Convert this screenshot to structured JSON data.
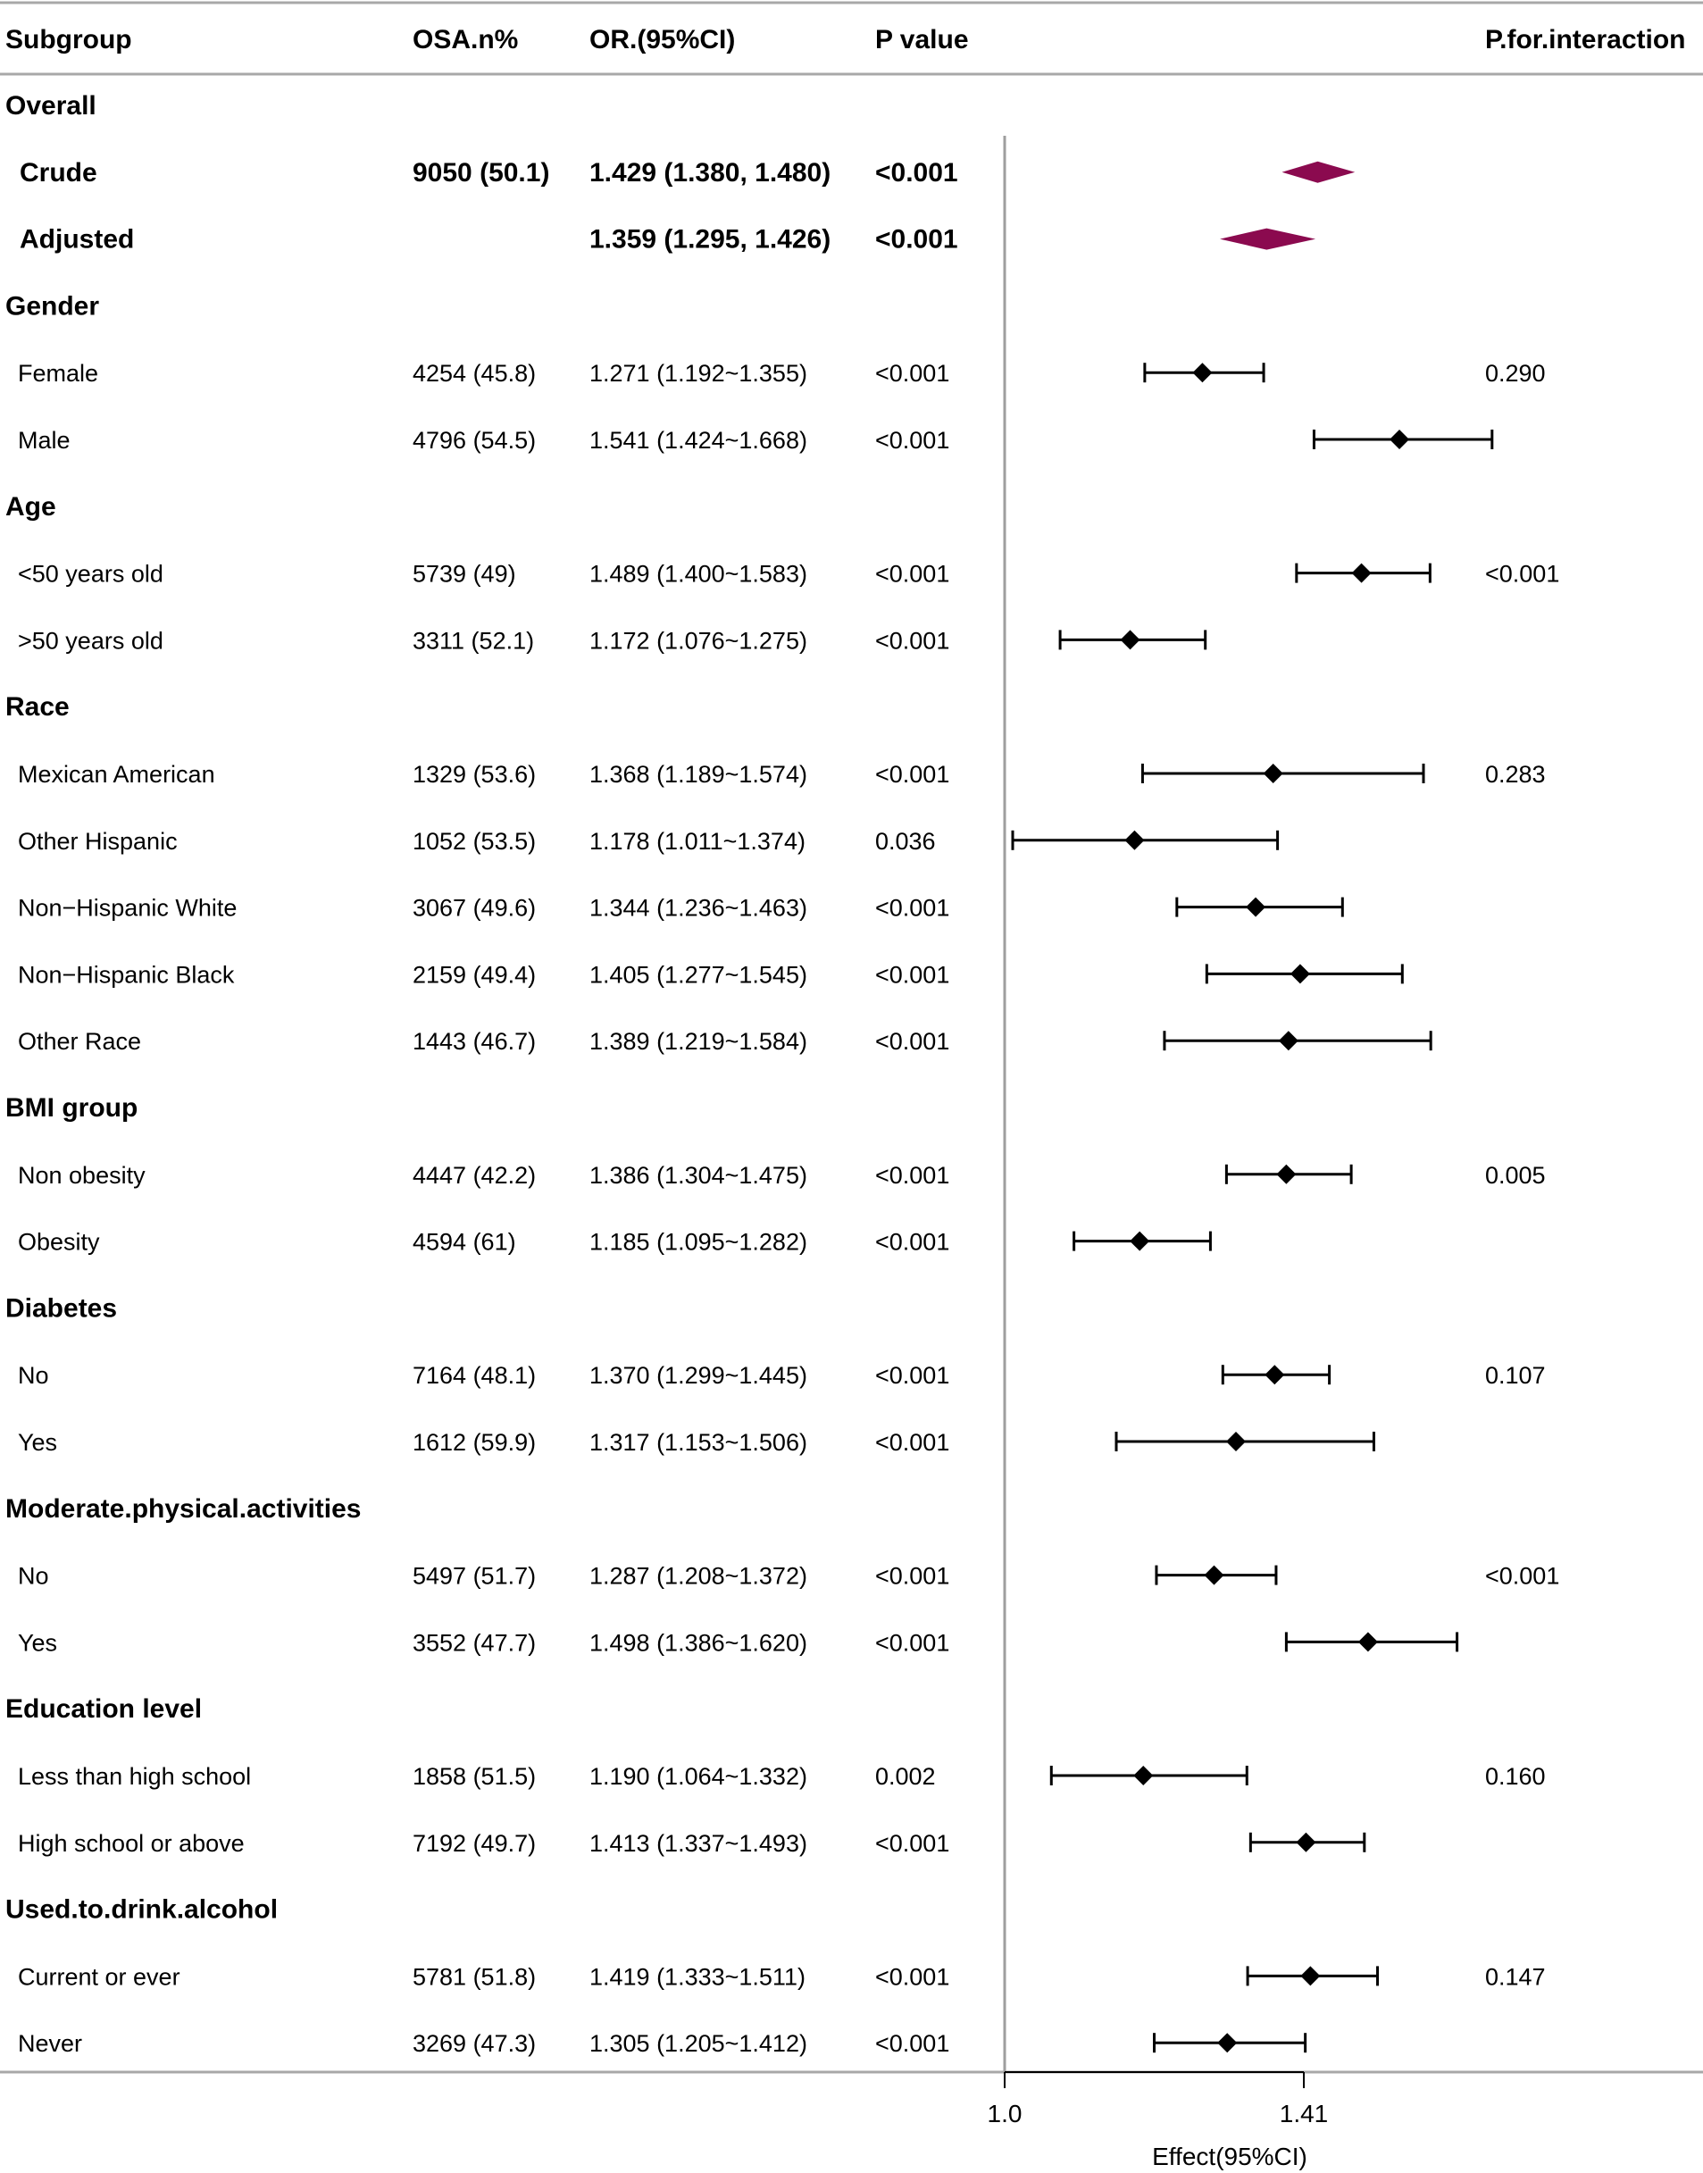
{
  "chart_data": {
    "type": "forest",
    "title": "",
    "columns": {
      "subgroup": "Subgroup",
      "osa": "OSA.n%",
      "or": "OR.(95%CI)",
      "p": "P value",
      "interaction": "P.for.interaction"
    },
    "x_axis": {
      "label": "Effect(95%CI)",
      "ticks": [
        {
          "value": 1.0,
          "label": "1.0"
        },
        {
          "value": 1.41,
          "label": "1.41"
        }
      ],
      "range": [
        1.0,
        1.8
      ],
      "reference_line": 1.0
    },
    "rows": [
      {
        "kind": "group",
        "label": "Overall"
      },
      {
        "kind": "overall",
        "label": "Crude",
        "osa": "9050 (50.1)",
        "or_text": "1.429 (1.380, 1.480)",
        "p": "<0.001",
        "interaction": "",
        "or": 1.429,
        "lo": 1.38,
        "hi": 1.48
      },
      {
        "kind": "overall",
        "label": "Adjusted",
        "osa": "",
        "or_text": "1.359 (1.295, 1.426)",
        "p": "<0.001",
        "interaction": "",
        "or": 1.359,
        "lo": 1.295,
        "hi": 1.426
      },
      {
        "kind": "group",
        "label": "Gender"
      },
      {
        "kind": "item",
        "label": "Female",
        "osa": "4254 (45.8)",
        "or_text": "1.271 (1.192~1.355)",
        "p": "<0.001",
        "interaction": "0.290",
        "or": 1.271,
        "lo": 1.192,
        "hi": 1.355
      },
      {
        "kind": "item",
        "label": "Male",
        "osa": "4796 (54.5)",
        "or_text": "1.541 (1.424~1.668)",
        "p": "<0.001",
        "interaction": "",
        "or": 1.541,
        "lo": 1.424,
        "hi": 1.668
      },
      {
        "kind": "group",
        "label": "Age"
      },
      {
        "kind": "item",
        "label": "<50 years old",
        "osa": "5739 (49)",
        "or_text": "1.489 (1.400~1.583)",
        "p": "<0.001",
        "interaction": "<0.001",
        "or": 1.489,
        "lo": 1.4,
        "hi": 1.583
      },
      {
        "kind": "item",
        "label": ">50 years old",
        "osa": "3311 (52.1)",
        "or_text": "1.172 (1.076~1.275)",
        "p": "<0.001",
        "interaction": "",
        "or": 1.172,
        "lo": 1.076,
        "hi": 1.275
      },
      {
        "kind": "group",
        "label": "Race"
      },
      {
        "kind": "item",
        "label": "Mexican American",
        "osa": "1329 (53.6)",
        "or_text": "1.368 (1.189~1.574)",
        "p": "<0.001",
        "interaction": "0.283",
        "or": 1.368,
        "lo": 1.189,
        "hi": 1.574
      },
      {
        "kind": "item",
        "label": "Other Hispanic",
        "osa": "1052 (53.5)",
        "or_text": "1.178 (1.011~1.374)",
        "p": "0.036",
        "interaction": "",
        "or": 1.178,
        "lo": 1.011,
        "hi": 1.374
      },
      {
        "kind": "item",
        "label": "Non−Hispanic White",
        "osa": "3067 (49.6)",
        "or_text": "1.344 (1.236~1.463)",
        "p": "<0.001",
        "interaction": "",
        "or": 1.344,
        "lo": 1.236,
        "hi": 1.463
      },
      {
        "kind": "item",
        "label": "Non−Hispanic Black",
        "osa": "2159 (49.4)",
        "or_text": "1.405 (1.277~1.545)",
        "p": "<0.001",
        "interaction": "",
        "or": 1.405,
        "lo": 1.277,
        "hi": 1.545
      },
      {
        "kind": "item",
        "label": "Other Race",
        "osa": "1443 (46.7)",
        "or_text": "1.389 (1.219~1.584)",
        "p": "<0.001",
        "interaction": "",
        "or": 1.389,
        "lo": 1.219,
        "hi": 1.584
      },
      {
        "kind": "group",
        "label": "BMI group"
      },
      {
        "kind": "item",
        "label": "Non obesity",
        "osa": "4447 (42.2)",
        "or_text": "1.386 (1.304~1.475)",
        "p": "<0.001",
        "interaction": "0.005",
        "or": 1.386,
        "lo": 1.304,
        "hi": 1.475
      },
      {
        "kind": "item",
        "label": "Obesity",
        "osa": "4594 (61)",
        "or_text": "1.185 (1.095~1.282)",
        "p": "<0.001",
        "interaction": "",
        "or": 1.185,
        "lo": 1.095,
        "hi": 1.282
      },
      {
        "kind": "group",
        "label": "Diabetes"
      },
      {
        "kind": "item",
        "label": "No",
        "osa": "7164 (48.1)",
        "or_text": "1.370 (1.299~1.445)",
        "p": "<0.001",
        "interaction": "0.107",
        "or": 1.37,
        "lo": 1.299,
        "hi": 1.445
      },
      {
        "kind": "item",
        "label": "Yes",
        "osa": "1612 (59.9)",
        "or_text": "1.317 (1.153~1.506)",
        "p": "<0.001",
        "interaction": "",
        "or": 1.317,
        "lo": 1.153,
        "hi": 1.506
      },
      {
        "kind": "group",
        "label": "Moderate.physical.activities"
      },
      {
        "kind": "item",
        "label": "No",
        "osa": "5497 (51.7)",
        "or_text": "1.287 (1.208~1.372)",
        "p": "<0.001",
        "interaction": "<0.001",
        "or": 1.287,
        "lo": 1.208,
        "hi": 1.372
      },
      {
        "kind": "item",
        "label": "Yes",
        "osa": "3552 (47.7)",
        "or_text": "1.498 (1.386~1.620)",
        "p": "<0.001",
        "interaction": "",
        "or": 1.498,
        "lo": 1.386,
        "hi": 1.62
      },
      {
        "kind": "group",
        "label": "Education level"
      },
      {
        "kind": "item",
        "label": "Less than high school",
        "osa": "1858 (51.5)",
        "or_text": "1.190 (1.064~1.332)",
        "p": "0.002",
        "interaction": "0.160",
        "or": 1.19,
        "lo": 1.064,
        "hi": 1.332
      },
      {
        "kind": "item",
        "label": "High school or above",
        "osa": "7192 (49.7)",
        "or_text": "1.413 (1.337~1.493)",
        "p": "<0.001",
        "interaction": "",
        "or": 1.413,
        "lo": 1.337,
        "hi": 1.493
      },
      {
        "kind": "group",
        "label": "Used.to.drink.alcohol"
      },
      {
        "kind": "item",
        "label": "Current or ever",
        "osa": "5781 (51.8)",
        "or_text": "1.419 (1.333~1.511)",
        "p": "<0.001",
        "interaction": "0.147",
        "or": 1.419,
        "lo": 1.333,
        "hi": 1.511
      },
      {
        "kind": "item",
        "label": "Never",
        "osa": "3269 (47.3)",
        "or_text": "1.305 (1.205~1.412)",
        "p": "<0.001",
        "interaction": "",
        "or": 1.305,
        "lo": 1.205,
        "hi": 1.412
      }
    ],
    "colors": {
      "overall_diamond": "#8b0a4f",
      "point": "#000000",
      "reference_line": "#9e9e9e",
      "rule": "#a8a8a8"
    }
  }
}
